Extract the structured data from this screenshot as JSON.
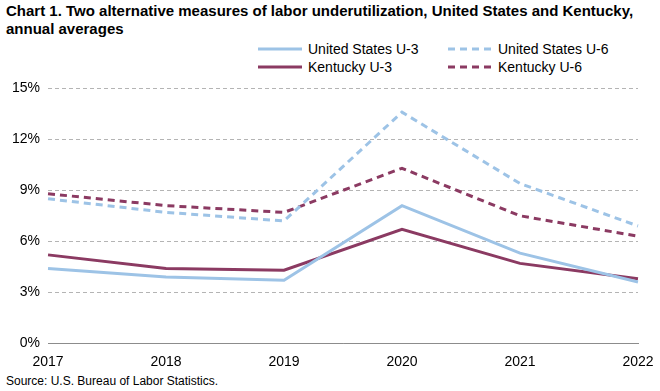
{
  "chart_data": {
    "type": "line",
    "title": "Chart 1. Two alternative measures of labor underutilization, United States and Kentucky, annual averages",
    "source": "Source: U.S. Bureau of Labor Statistics.",
    "categories": [
      "2017",
      "2018",
      "2019",
      "2020",
      "2021",
      "2022"
    ],
    "series": [
      {
        "name": "United States U-3",
        "color": "#9dc3e6",
        "line_style": "solid",
        "values": [
          4.4,
          3.9,
          3.7,
          8.1,
          5.3,
          3.6
        ]
      },
      {
        "name": "United States U-6",
        "color": "#9dc3e6",
        "line_style": "dashed",
        "values": [
          8.5,
          7.7,
          7.2,
          13.6,
          9.4,
          6.9
        ]
      },
      {
        "name": "Kentucky U-3",
        "color": "#8b3a62",
        "line_style": "solid",
        "values": [
          5.2,
          4.4,
          4.3,
          6.7,
          4.7,
          3.8
        ]
      },
      {
        "name": "Kentucky U-6",
        "color": "#8b3a62",
        "line_style": "dashed",
        "values": [
          8.8,
          8.1,
          7.7,
          10.3,
          7.5,
          6.3
        ]
      }
    ],
    "ylim": [
      0,
      15
    ],
    "yticks": [
      {
        "value": 0,
        "label": "0%"
      },
      {
        "value": 3,
        "label": "3%"
      },
      {
        "value": 6,
        "label": "6%"
      },
      {
        "value": 9,
        "label": "9%"
      },
      {
        "value": 12,
        "label": "12%"
      },
      {
        "value": 15,
        "label": "15%"
      }
    ],
    "grid": true,
    "legend": "top"
  }
}
